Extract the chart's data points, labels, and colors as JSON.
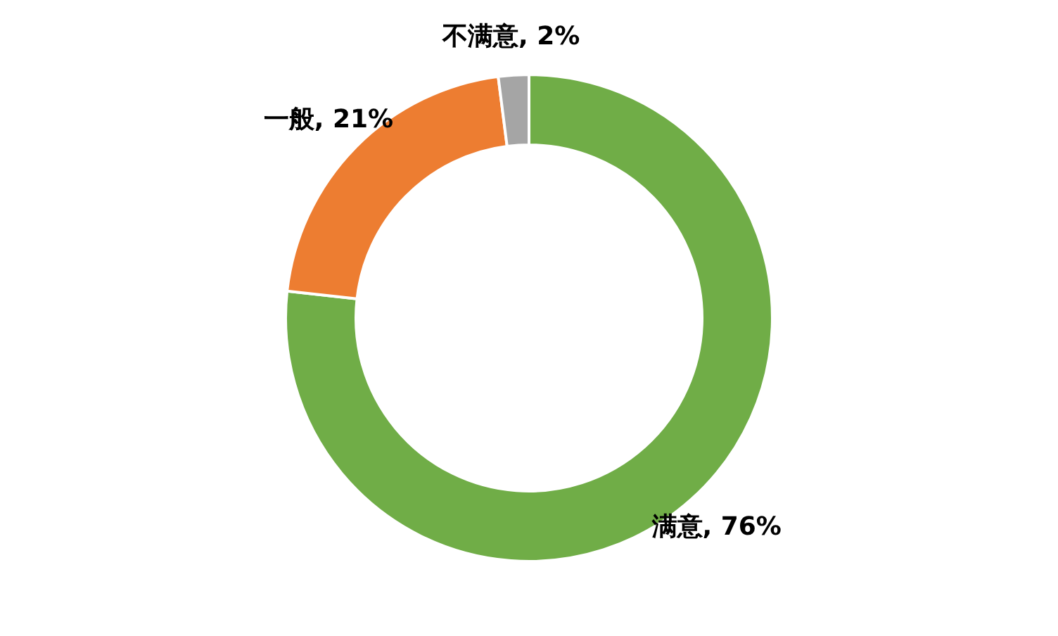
{
  "chart_data": {
    "type": "donut",
    "categories": [
      "满意",
      "一般",
      "不满意"
    ],
    "values": [
      76,
      21,
      2
    ],
    "colors": [
      "#70ad47",
      "#ed7d31",
      "#a5a5a5"
    ],
    "value_labels": [
      "76%",
      "21%",
      "2%"
    ]
  }
}
